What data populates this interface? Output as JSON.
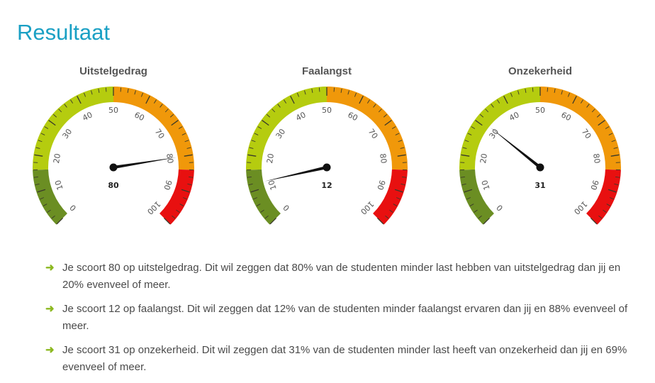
{
  "page": {
    "title": "Resultaat"
  },
  "colors": {
    "accent": "#1aa0c4",
    "band_dark_green": "#6b8e23",
    "band_light_green": "#b5cc0f",
    "band_orange": "#f0980a",
    "band_red": "#e81010",
    "arrow": "#8cb820"
  },
  "gauges": [
    {
      "title": "Uitstelgedrag",
      "value": 80,
      "value_label": "80"
    },
    {
      "title": "Faalangst",
      "value": 12,
      "value_label": "12"
    },
    {
      "title": "Onzekerheid",
      "value": 31,
      "value_label": "31"
    }
  ],
  "scale": {
    "min": 0,
    "max": 100,
    "tick_labels": [
      "0",
      "10",
      "20",
      "30",
      "40",
      "50",
      "60",
      "70",
      "80",
      "90",
      "100"
    ],
    "bands": [
      {
        "from": 0,
        "to": 16,
        "color": "#6b8e23"
      },
      {
        "from": 16,
        "to": 50,
        "color": "#b5cc0f"
      },
      {
        "from": 50,
        "to": 84,
        "color": "#f0980a"
      },
      {
        "from": 84,
        "to": 100,
        "color": "#e81010"
      }
    ]
  },
  "results": [
    {
      "icon": "arrow-right-icon",
      "text": "Je scoort 80 op uitstelgedrag. Dit wil zeggen dat 80% van de studenten minder last hebben van uitstelgedrag dan jij en 20% evenveel of meer."
    },
    {
      "icon": "arrow-right-icon",
      "text": "Je scoort 12 op faalangst. Dit wil zeggen dat 12% van de studenten minder faalangst ervaren dan jij en 88% evenveel of meer."
    },
    {
      "icon": "arrow-right-icon",
      "text": "Je scoort 31 op onzekerheid. Dit wil zeggen dat 31% van de studenten minder last heeft van onzekerheid dan jij en 69% evenveel of meer."
    }
  ]
}
